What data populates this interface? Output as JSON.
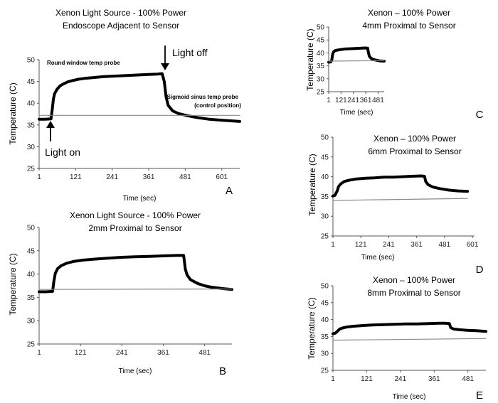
{
  "chart_data": [
    {
      "panel": "A",
      "type": "line",
      "title": "Xenon Light Source - 100% Power",
      "subtitle": "Endoscope Adjacent to Sensor",
      "xlabel": "Time (sec)",
      "ylabel": "Temperature (C)",
      "xlim": [
        1,
        660
      ],
      "ylim": [
        25,
        50
      ],
      "xticks": [
        1,
        121,
        241,
        361,
        481,
        601
      ],
      "yticks": [
        25,
        30,
        35,
        40,
        45,
        50
      ],
      "grid": false,
      "series": [
        {
          "name": "Round window temp probe",
          "style": "thick",
          "x": [
            1,
            20,
            40,
            44,
            48,
            52,
            60,
            70,
            80,
            95,
            110,
            130,
            150,
            180,
            210,
            240,
            270,
            300,
            330,
            360,
            390,
            405,
            412,
            418,
            425,
            440,
            460,
            490,
            520,
            560,
            600,
            640,
            660
          ],
          "y": [
            36.3,
            36.3,
            36.4,
            38.5,
            41,
            42.2,
            43.2,
            44,
            44.4,
            44.9,
            45.2,
            45.5,
            45.7,
            45.9,
            46.1,
            46.2,
            46.3,
            46.4,
            46.5,
            46.6,
            46.7,
            46.8,
            45,
            41.5,
            39.5,
            38.2,
            37.6,
            37.1,
            36.7,
            36.3,
            36.1,
            35.9,
            35.8
          ]
        },
        {
          "name": "Sigmoid sinus temp probe (control position)",
          "style": "thin",
          "x": [
            1,
            660
          ],
          "y": [
            37.2,
            37.2
          ]
        }
      ],
      "annotations": [
        "Round window temp probe",
        "Light off",
        "Sigmoid sinus temp probe",
        "(control position)",
        "Light on"
      ]
    },
    {
      "panel": "B",
      "type": "line",
      "title": "Xenon Light Source - 100% Power",
      "subtitle": "2mm Proximal to Sensor",
      "xlabel": "Time (sec)",
      "ylabel": "Temperature (C)",
      "xlim": [
        1,
        560
      ],
      "ylim": [
        25,
        50
      ],
      "xticks": [
        1,
        121,
        241,
        361,
        481
      ],
      "yticks": [
        25,
        30,
        35,
        40,
        45,
        50
      ],
      "grid": false,
      "series": [
        {
          "name": "",
          "style": "thick",
          "x": [
            1,
            20,
            40,
            44,
            48,
            55,
            65,
            80,
            100,
            130,
            160,
            200,
            240,
            280,
            320,
            360,
            400,
            420,
            425,
            430,
            440,
            460,
            480,
            500,
            530,
            560
          ],
          "y": [
            36.2,
            36.2,
            36.3,
            38.5,
            40.2,
            41.2,
            41.8,
            42.3,
            42.7,
            43.0,
            43.2,
            43.4,
            43.6,
            43.7,
            43.8,
            43.9,
            44.0,
            44.0,
            41,
            39.8,
            38.8,
            38.0,
            37.5,
            37.2,
            36.9,
            36.7
          ]
        },
        {
          "name": "",
          "style": "thin",
          "x": [
            1,
            560
          ],
          "y": [
            36.7,
            36.8
          ]
        }
      ]
    },
    {
      "panel": "C",
      "type": "line",
      "title": "Xenon – 100% Power",
      "subtitle": "4mm Proximal to Sensor",
      "xlabel": "Time (sec)",
      "ylabel": "Temperature (C)",
      "xlim": [
        1,
        540
      ],
      "ylim": [
        25,
        50
      ],
      "xticks": [
        1,
        121,
        241,
        361,
        481
      ],
      "yticks": [
        25,
        30,
        35,
        40,
        45,
        50
      ],
      "grid": false,
      "series": [
        {
          "name": "",
          "style": "thick",
          "x": [
            1,
            20,
            30,
            40,
            50,
            65,
            90,
            120,
            160,
            200,
            260,
            320,
            360,
            380,
            385,
            395,
            410,
            430,
            460,
            500,
            540
          ],
          "y": [
            36.4,
            36.5,
            37,
            39.5,
            40.5,
            40.9,
            41.1,
            41.3,
            41.5,
            41.6,
            41.7,
            41.8,
            41.9,
            41.8,
            40.5,
            38.8,
            38.0,
            37.5,
            37.2,
            36.9,
            36.8
          ]
        },
        {
          "name": "",
          "style": "thin",
          "x": [
            1,
            540
          ],
          "y": [
            36.8,
            37.0
          ]
        }
      ]
    },
    {
      "panel": "D",
      "type": "line",
      "title": "Xenon – 100% Power",
      "subtitle": "6mm Proximal to Sensor",
      "xlabel": "Time (sec)",
      "ylabel": "Temperature (C)",
      "xlim": [
        1,
        610
      ],
      "ylim": [
        25,
        50
      ],
      "xticks": [
        1,
        121,
        241,
        361,
        481,
        601
      ],
      "yticks": [
        25,
        30,
        35,
        40,
        45,
        50
      ],
      "grid": false,
      "series": [
        {
          "name": "",
          "style": "thick",
          "x": [
            1,
            10,
            20,
            25,
            35,
            50,
            70,
            100,
            140,
            180,
            220,
            260,
            300,
            340,
            380,
            395,
            400,
            410,
            430,
            460,
            500,
            540,
            580
          ],
          "y": [
            35.1,
            35.3,
            36.5,
            37.5,
            38.2,
            38.8,
            39.1,
            39.4,
            39.6,
            39.7,
            39.9,
            39.9,
            40.0,
            40.1,
            40.2,
            40.1,
            38.8,
            38.0,
            37.4,
            37.0,
            36.6,
            36.4,
            36.3
          ]
        },
        {
          "name": "",
          "style": "thin",
          "x": [
            1,
            580
          ],
          "y": [
            34.0,
            34.5
          ]
        }
      ]
    },
    {
      "panel": "E",
      "type": "line",
      "title": "Xenon – 100% Power",
      "subtitle": "8mm Proximal to Sensor",
      "xlabel": "Time (sec)",
      "ylabel": "Temperature (C)",
      "xlim": [
        1,
        545
      ],
      "ylim": [
        25,
        50
      ],
      "xticks": [
        1,
        121,
        241,
        361,
        481
      ],
      "yticks": [
        25,
        30,
        35,
        40,
        45,
        50
      ],
      "grid": false,
      "series": [
        {
          "name": "",
          "style": "thick",
          "x": [
            1,
            10,
            20,
            25,
            35,
            50,
            70,
            100,
            140,
            180,
            220,
            260,
            300,
            340,
            380,
            400,
            415,
            420,
            430,
            450,
            480,
            510,
            545
          ],
          "y": [
            35.8,
            36.0,
            36.8,
            37.2,
            37.5,
            37.8,
            38.0,
            38.2,
            38.4,
            38.5,
            38.6,
            38.7,
            38.7,
            38.8,
            38.9,
            38.9,
            38.8,
            37.6,
            37.2,
            37.0,
            36.8,
            36.7,
            36.5
          ]
        },
        {
          "name": "",
          "style": "thin",
          "x": [
            1,
            545
          ],
          "y": [
            33.9,
            34.4
          ]
        }
      ]
    }
  ]
}
